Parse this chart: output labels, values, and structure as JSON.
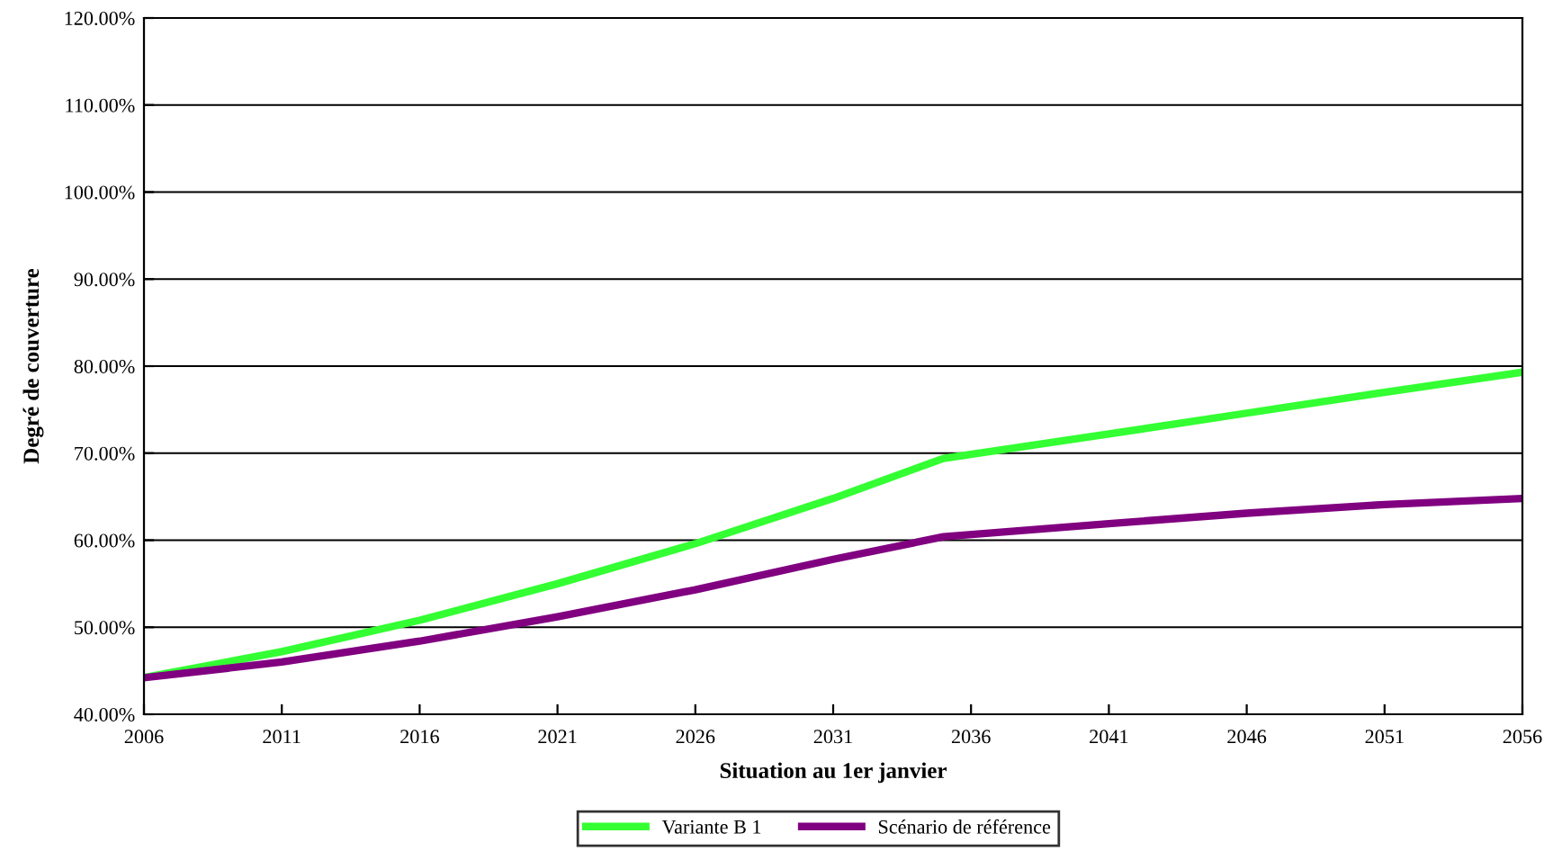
{
  "chart_data": {
    "type": "line",
    "xlabel": "Situation au 1er janvier",
    "ylabel": "Degré de couverture",
    "x": [
      2006,
      2011,
      2016,
      2021,
      2026,
      2031,
      2035,
      2041,
      2046,
      2051,
      2056
    ],
    "series": [
      {
        "name": "Variante B 1",
        "color": "#33ff33",
        "values": [
          44.2,
          47.2,
          50.8,
          55.0,
          59.6,
          64.8,
          69.4,
          72.2,
          74.6,
          77.0,
          79.3
        ]
      },
      {
        "name": "Scénario de référence",
        "color": "#800080",
        "values": [
          44.2,
          46.0,
          48.4,
          51.2,
          54.3,
          57.8,
          60.4,
          61.9,
          63.1,
          64.1,
          64.8
        ]
      }
    ],
    "xlim": [
      2006,
      2056
    ],
    "xticks": [
      2006,
      2011,
      2016,
      2021,
      2026,
      2031,
      2036,
      2041,
      2046,
      2051,
      2056
    ],
    "ylim": [
      40,
      120
    ],
    "yticks": [
      {
        "value": 40,
        "label": "40.00%"
      },
      {
        "value": 50,
        "label": "50.00%"
      },
      {
        "value": 60,
        "label": "60.00%"
      },
      {
        "value": 70,
        "label": "70.00%"
      },
      {
        "value": 80,
        "label": "80.00%"
      },
      {
        "value": 90,
        "label": "90.00%"
      },
      {
        "value": 100,
        "label": "100.00%"
      },
      {
        "value": 110,
        "label": "110.00%"
      },
      {
        "value": 120,
        "label": "120.00%"
      }
    ],
    "grid": "y",
    "legend": "bottom",
    "marker": "none",
    "line_style": "solid"
  }
}
